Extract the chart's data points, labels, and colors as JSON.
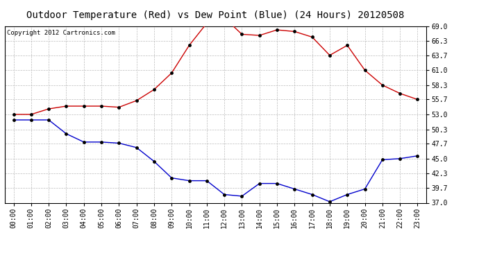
{
  "title": "Outdoor Temperature (Red) vs Dew Point (Blue) (24 Hours) 20120508",
  "copyright_text": "Copyright 2012 Cartronics.com",
  "x_labels": [
    "00:00",
    "01:00",
    "02:00",
    "03:00",
    "04:00",
    "05:00",
    "06:00",
    "07:00",
    "08:00",
    "09:00",
    "10:00",
    "11:00",
    "12:00",
    "13:00",
    "14:00",
    "15:00",
    "16:00",
    "17:00",
    "18:00",
    "19:00",
    "20:00",
    "21:00",
    "22:00",
    "23:00"
  ],
  "temp_red": [
    53.0,
    53.0,
    54.0,
    54.5,
    54.5,
    54.5,
    54.3,
    55.5,
    57.5,
    60.5,
    65.5,
    69.5,
    70.5,
    67.5,
    67.3,
    68.3,
    68.0,
    67.0,
    63.7,
    65.5,
    61.0,
    58.3,
    56.8,
    55.7
  ],
  "dew_blue": [
    52.0,
    52.0,
    52.0,
    49.5,
    48.0,
    48.0,
    47.8,
    47.0,
    44.5,
    41.5,
    41.0,
    41.0,
    38.5,
    38.2,
    40.5,
    40.5,
    39.5,
    38.5,
    37.2,
    38.5,
    39.5,
    44.8,
    45.0,
    45.5
  ],
  "y_ticks": [
    37.0,
    39.7,
    42.3,
    45.0,
    47.7,
    50.3,
    53.0,
    55.7,
    58.3,
    61.0,
    63.7,
    66.3,
    69.0
  ],
  "ylim": [
    37.0,
    69.0
  ],
  "line_color_red": "#cc0000",
  "line_color_blue": "#0000cc",
  "marker_color": "#000000",
  "bg_color": "#ffffff",
  "grid_color": "#bbbbbb",
  "title_fontsize": 10,
  "copyright_fontsize": 6.5,
  "tick_fontsize": 7
}
